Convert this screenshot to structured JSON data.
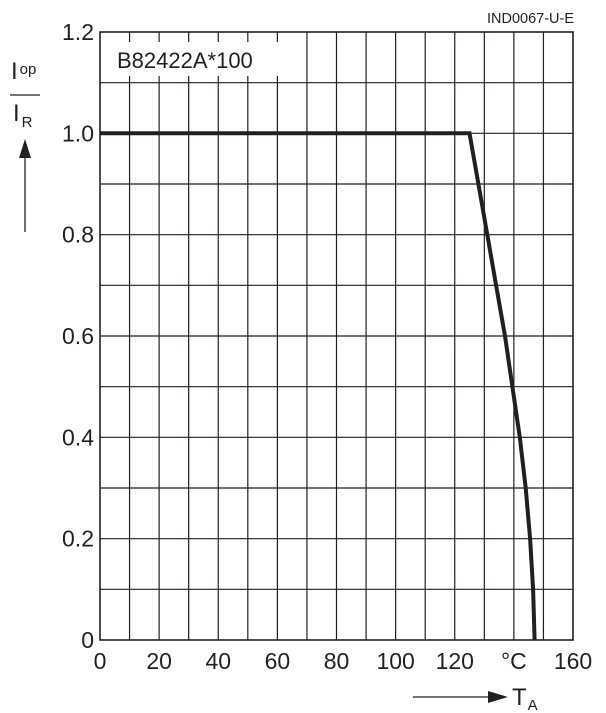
{
  "doc_id": "IND0067-U-E",
  "colors": {
    "ink": "#231f20",
    "background": "#ffffff",
    "label_box": "#ffffff"
  },
  "chart_data": {
    "type": "line",
    "annotation": "B82422A*100",
    "ylabel": {
      "numerator": {
        "main": "I",
        "sub": "op"
      },
      "denominator": {
        "main": "I",
        "sub": "R"
      }
    },
    "xlabel": {
      "main": "T",
      "sub": "A"
    },
    "x_unit": "°C",
    "xlim": [
      0,
      160
    ],
    "ylim": [
      0,
      1.2
    ],
    "grid": true,
    "x_grid_step": 10,
    "y_grid_step": 0.1,
    "x_ticks": [
      {
        "value": 0,
        "label": "0"
      },
      {
        "value": 20,
        "label": "20"
      },
      {
        "value": 40,
        "label": "40"
      },
      {
        "value": 60,
        "label": "60"
      },
      {
        "value": 80,
        "label": "80"
      },
      {
        "value": 100,
        "label": "100"
      },
      {
        "value": 120,
        "label": "120"
      },
      {
        "value": 140,
        "label": "°C"
      },
      {
        "value": 160,
        "label": "160"
      }
    ],
    "y_ticks": [
      {
        "value": 0,
        "label": "0"
      },
      {
        "value": 0.2,
        "label": "0.2"
      },
      {
        "value": 0.4,
        "label": "0.4"
      },
      {
        "value": 0.6,
        "label": "0.6"
      },
      {
        "value": 0.8,
        "label": "0.8"
      },
      {
        "value": 1.0,
        "label": "1.0"
      },
      {
        "value": 1.2,
        "label": "1.2"
      }
    ],
    "series": [
      {
        "x": [
          0,
          125,
          128,
          131,
          134,
          137,
          139.5,
          142,
          144,
          145.5,
          146.5,
          147
        ],
        "y": [
          1.0,
          1.0,
          0.9,
          0.8,
          0.7,
          0.6,
          0.5,
          0.4,
          0.3,
          0.2,
          0.1,
          0.0
        ]
      }
    ]
  }
}
